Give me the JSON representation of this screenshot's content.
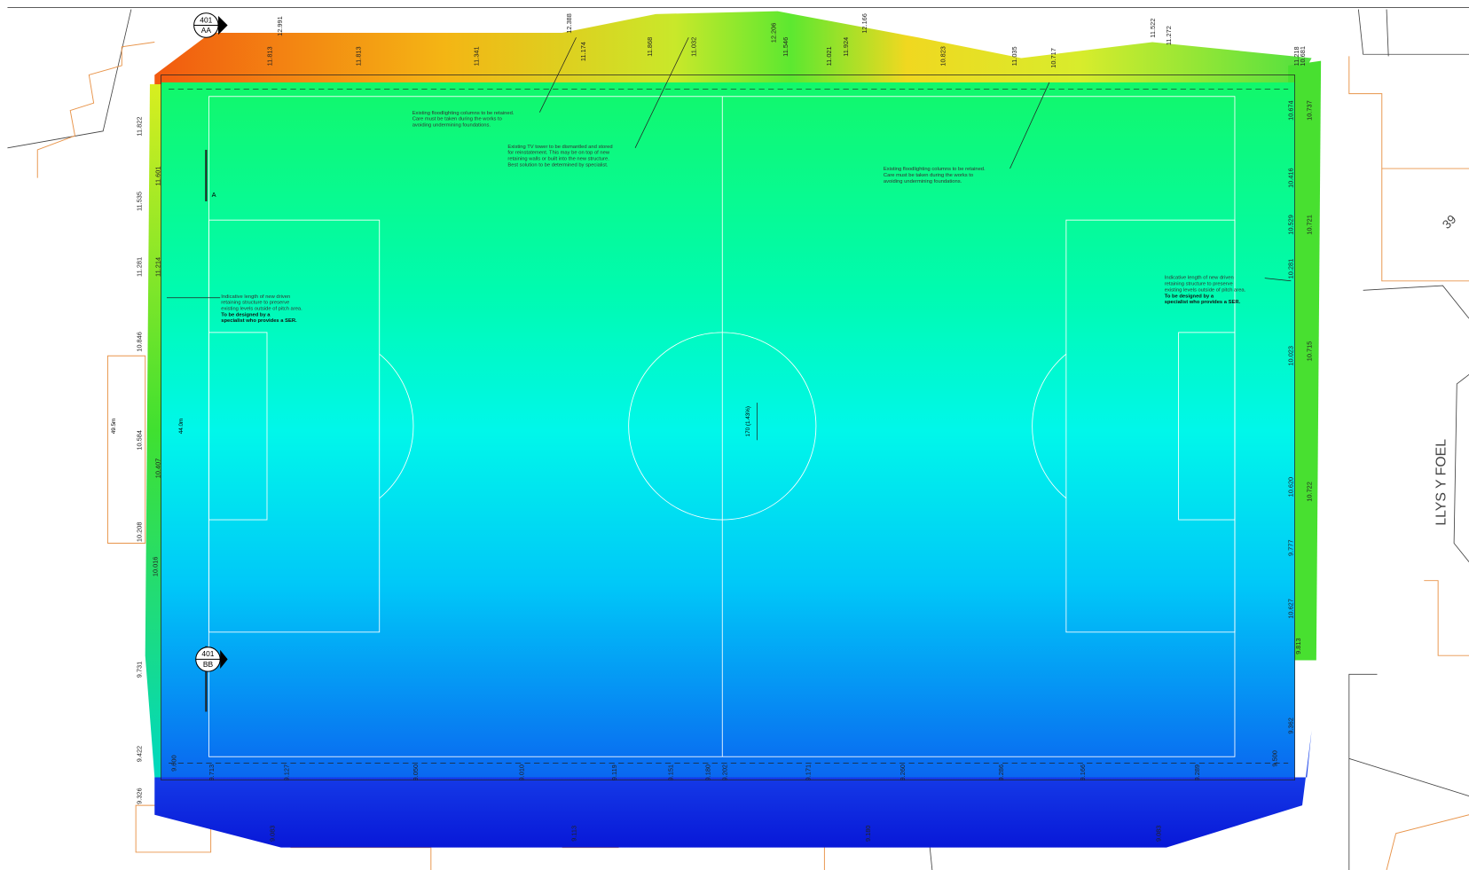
{
  "street": "LLYS Y FOEL",
  "plot": "39",
  "markers": [
    {
      "number": "401",
      "code": "AA"
    },
    {
      "number": "401",
      "code": "BB"
    }
  ],
  "section_letter": "A",
  "dimensions": [
    "49.5m",
    "44.0m"
  ],
  "fall": "170 (1.43%)",
  "notes": [
    {
      "lines": [
        "Existing floodlighting columns to be retained.",
        "Care must be taken during the works to",
        "avoiding undermining foundations."
      ],
      "bold": []
    },
    {
      "lines": [
        "Existing TV tower to be dismantled and stored",
        "for reinstatement. This may be on top of new",
        "retaining walls or built into the new structure.",
        "Best solution to be determined by specialist."
      ],
      "bold": []
    },
    {
      "lines": [
        "Existing floodlighting columns to be retained.",
        "Care must be taken during the works to",
        "avoiding undermining foundations."
      ],
      "bold": []
    },
    {
      "lines": [
        "Indicative length of new driven",
        "retaining structure to preserve",
        "existing levels outside of pitch area."
      ],
      "bold": [
        "To be designed by a",
        "specialist who provides a SER."
      ]
    },
    {
      "lines": [
        "Indicative length of new driven",
        "retaining structure to preserve",
        "existing levels outside of pitch area."
      ],
      "bold": [
        "To be designed by a",
        "specialist who provides a SER."
      ]
    }
  ],
  "levels": [
    "12.991",
    "12.388",
    "12.166",
    "11.522",
    "11.813",
    "11.813",
    "11.341",
    "11.174",
    "11.868",
    "11.032",
    "12.206",
    "11.546",
    "11.021",
    "11.924",
    "10.823",
    "11.035",
    "10.717",
    "11.272",
    "11.218",
    "10.681",
    "11.822",
    "11.601",
    "11.535",
    "11.281",
    "11.214",
    "10.846",
    "10.584",
    "10.407",
    "10.208",
    "10.016",
    "9.731",
    "9.422",
    "9.326",
    "10.674",
    "10.737",
    "10.416",
    "10.529",
    "10.721",
    "10.281",
    "10.715",
    "10.023",
    "10.620",
    "10.722",
    "9.777",
    "10.627",
    "9.813",
    "9.362",
    "9.500",
    "9.600",
    "9.713",
    "9.127",
    "9.050",
    "9.010",
    "9.119",
    "9.151",
    "9.180",
    "9.202",
    "9.171",
    "9.260",
    "9.286",
    "9.166",
    "9.289",
    "9.083",
    "9.113",
    "9.180",
    "9.083"
  ]
}
